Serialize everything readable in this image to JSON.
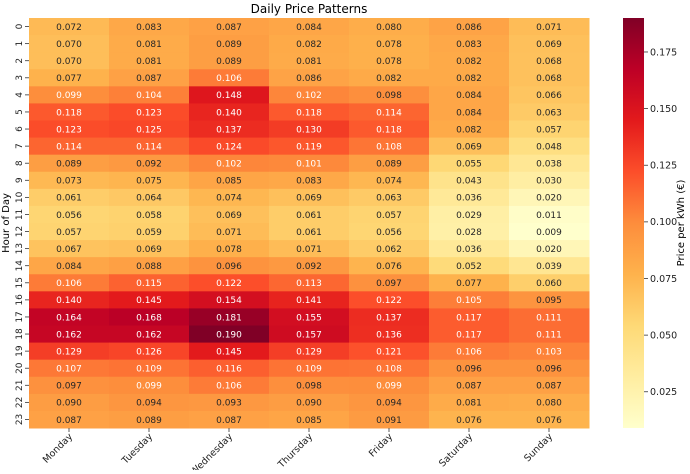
{
  "chart_data": {
    "type": "heatmap",
    "title": "Daily Price Patterns",
    "xlabel": "",
    "ylabel": "Hour of Day",
    "colorbar_label": "Price per kWh (€)",
    "colormap": [
      "#ffffcc",
      "#ffeda0",
      "#fed976",
      "#feb24c",
      "#fd8d3c",
      "#fc4e2a",
      "#e31a1c",
      "#bd0026",
      "#800026"
    ],
    "color_range": [
      0.009,
      0.19
    ],
    "colorbar_ticks": [
      "0.025",
      "0.050",
      "0.075",
      "0.100",
      "0.125",
      "0.150",
      "0.175"
    ],
    "columns": [
      "Monday",
      "Tuesday",
      "Wednesday",
      "Thursday",
      "Friday",
      "Saturday",
      "Sunday"
    ],
    "rows": [
      "0",
      "1",
      "2",
      "3",
      "4",
      "5",
      "6",
      "7",
      "8",
      "9",
      "10",
      "11",
      "12",
      "13",
      "14",
      "15",
      "16",
      "17",
      "18",
      "19",
      "20",
      "21",
      "22",
      "23"
    ],
    "values": [
      [
        0.072,
        0.083,
        0.087,
        0.084,
        0.08,
        0.086,
        0.071
      ],
      [
        0.07,
        0.081,
        0.089,
        0.082,
        0.078,
        0.083,
        0.069
      ],
      [
        0.07,
        0.081,
        0.089,
        0.081,
        0.078,
        0.082,
        0.068
      ],
      [
        0.077,
        0.087,
        0.106,
        0.086,
        0.082,
        0.082,
        0.068
      ],
      [
        0.099,
        0.104,
        0.148,
        0.102,
        0.098,
        0.084,
        0.066
      ],
      [
        0.118,
        0.123,
        0.14,
        0.118,
        0.114,
        0.084,
        0.063
      ],
      [
        0.123,
        0.125,
        0.137,
        0.13,
        0.118,
        0.082,
        0.057
      ],
      [
        0.114,
        0.114,
        0.124,
        0.119,
        0.108,
        0.069,
        0.048
      ],
      [
        0.089,
        0.092,
        0.102,
        0.101,
        0.089,
        0.055,
        0.038
      ],
      [
        0.073,
        0.075,
        0.085,
        0.083,
        0.074,
        0.043,
        0.03
      ],
      [
        0.061,
        0.064,
        0.074,
        0.069,
        0.063,
        0.036,
        0.02
      ],
      [
        0.056,
        0.058,
        0.069,
        0.061,
        0.057,
        0.029,
        0.011
      ],
      [
        0.057,
        0.059,
        0.071,
        0.061,
        0.056,
        0.028,
        0.009
      ],
      [
        0.067,
        0.069,
        0.078,
        0.071,
        0.062,
        0.036,
        0.02
      ],
      [
        0.084,
        0.088,
        0.096,
        0.092,
        0.076,
        0.052,
        0.039
      ],
      [
        0.106,
        0.115,
        0.122,
        0.113,
        0.097,
        0.077,
        0.06
      ],
      [
        0.14,
        0.145,
        0.154,
        0.141,
        0.122,
        0.105,
        0.095
      ],
      [
        0.164,
        0.168,
        0.181,
        0.155,
        0.137,
        0.117,
        0.111
      ],
      [
        0.162,
        0.162,
        0.19,
        0.157,
        0.136,
        0.117,
        0.111
      ],
      [
        0.129,
        0.126,
        0.145,
        0.129,
        0.121,
        0.106,
        0.103
      ],
      [
        0.107,
        0.109,
        0.116,
        0.109,
        0.108,
        0.096,
        0.096
      ],
      [
        0.097,
        0.099,
        0.106,
        0.098,
        0.099,
        0.087,
        0.087
      ],
      [
        0.09,
        0.094,
        0.093,
        0.09,
        0.094,
        0.081,
        0.08
      ],
      [
        0.087,
        0.089,
        0.087,
        0.085,
        0.091,
        0.076,
        0.076
      ]
    ]
  }
}
